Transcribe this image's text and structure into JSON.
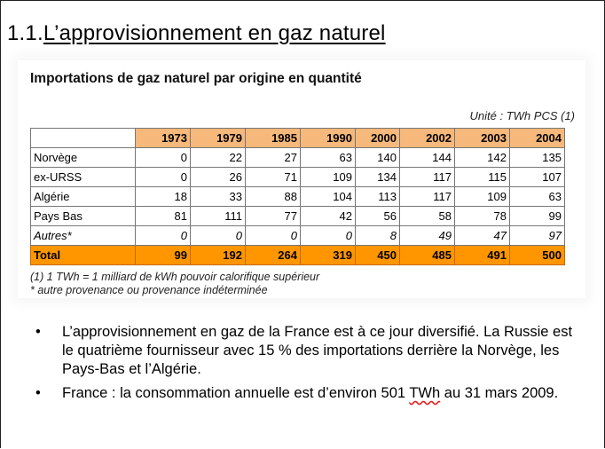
{
  "slide": {
    "number": "1.1.",
    "title": "L’approvisionnement en gaz naturel"
  },
  "figure": {
    "title": "Importations de gaz naturel par origine en quantité",
    "unit": "Unité : TWh PCS (1)",
    "columns": [
      "1973",
      "1979",
      "1985",
      "1990",
      "2000",
      "2002",
      "2003",
      "2004"
    ],
    "rows": [
      {
        "label": "Norvège",
        "values": [
          "0",
          "22",
          "27",
          "63",
          "140",
          "144",
          "142",
          "135"
        ]
      },
      {
        "label": "ex-URSS",
        "values": [
          "0",
          "26",
          "71",
          "109",
          "134",
          "117",
          "115",
          "107"
        ]
      },
      {
        "label": "Algérie",
        "values": [
          "18",
          "33",
          "88",
          "104",
          "113",
          "117",
          "109",
          "63"
        ]
      },
      {
        "label": "Pays Bas",
        "values": [
          "81",
          "111",
          "77",
          "42",
          "56",
          "58",
          "78",
          "99"
        ]
      },
      {
        "label": "Autres*",
        "values": [
          "0",
          "0",
          "0",
          "0",
          "8",
          "49",
          "47",
          "97"
        ]
      },
      {
        "label": "Total",
        "values": [
          "99",
          "192",
          "264",
          "319",
          "450",
          "485",
          "491",
          "500"
        ]
      }
    ],
    "note_1": "(1) 1 TWh = 1 milliard de kWh pouvoir calorifique supérieur",
    "note_2": "* autre provenance ou provenance indéterminée"
  },
  "bullets": [
    {
      "symbol": "•",
      "text": "L’approvisionnement en gaz de la France est à ce jour diversifié. La Russie est le quatrième fournisseur avec 15 % des importations derrière la Norvège, les Pays-Bas et l’Algérie."
    },
    {
      "symbol": "•",
      "text_before": "France : la consommation annuelle est d’environ 501 ",
      "text_flagged": "TWh",
      "text_after": " au 31 mars 2009."
    }
  ],
  "colors": {
    "header_fill": "#f7b87b",
    "total_fill": "#ff9600",
    "spellcheck_underline": "#e02020"
  }
}
